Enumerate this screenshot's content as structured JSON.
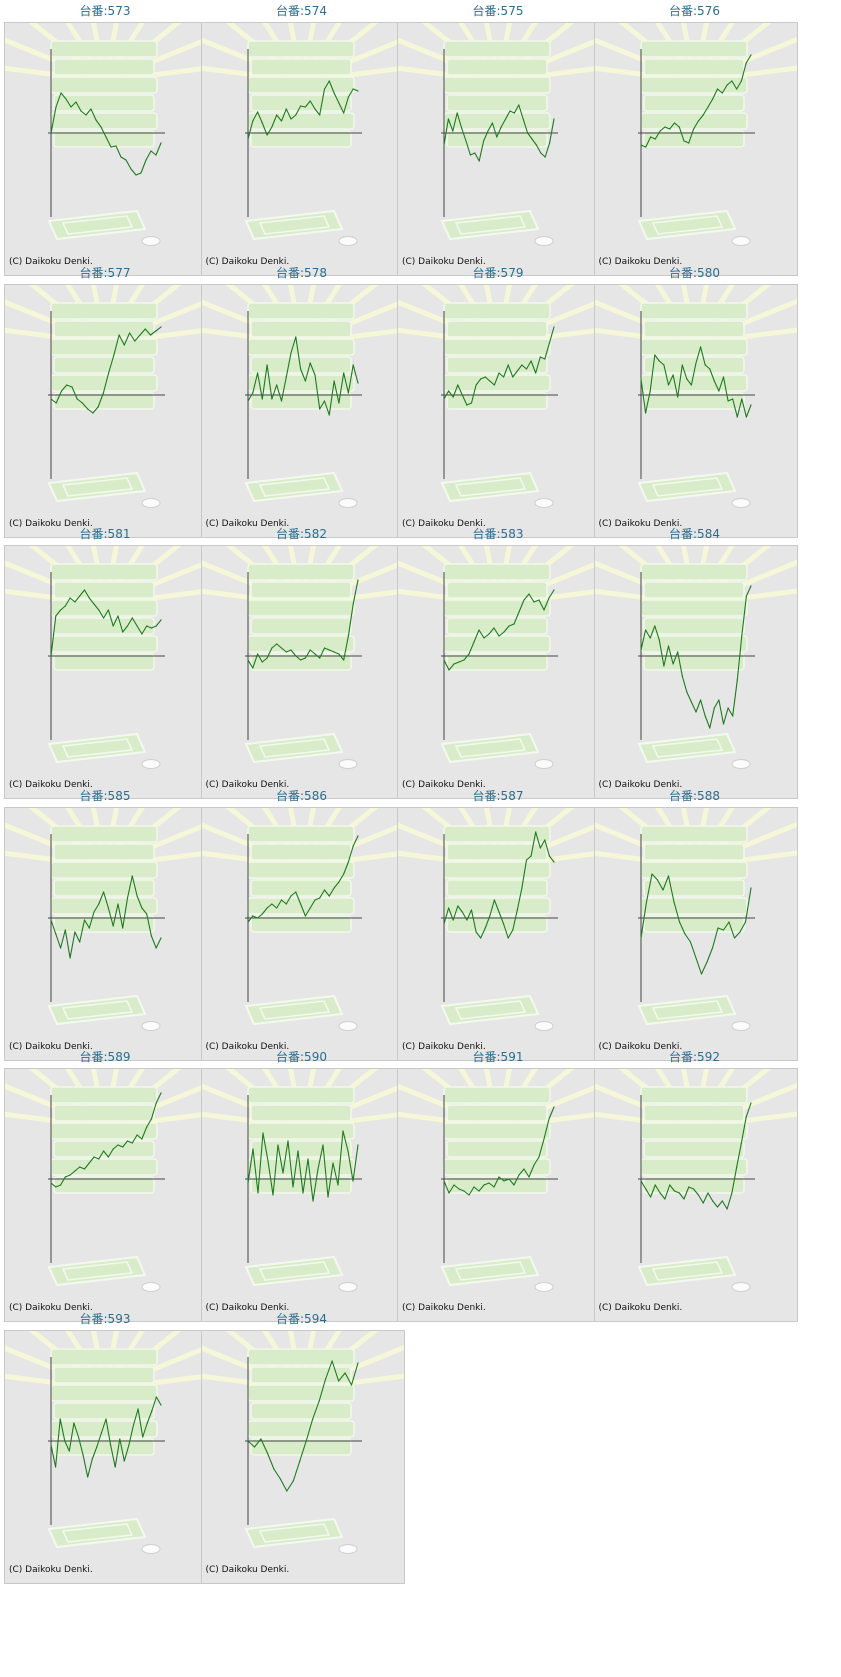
{
  "title_prefix": "台番:",
  "credit": "(C) Daikoku Denki.",
  "colors": {
    "title": "#2d6e8e",
    "panel": "#e6e6e6",
    "line": "#1f7a1f",
    "axis": "#444444",
    "art": "#d9ecc9"
  },
  "chart_data": [
    {
      "type": "line",
      "title": "台番:573",
      "values": [
        0,
        26,
        40,
        34,
        26,
        31,
        22,
        18,
        24,
        13,
        6,
        -4,
        -14,
        -13,
        -24,
        -27,
        -36,
        -42,
        -40,
        -27,
        -18,
        -22,
        -10
      ]
    },
    {
      "type": "line",
      "title": "台番:574",
      "values": [
        -6,
        12,
        21,
        10,
        -2,
        6,
        18,
        12,
        24,
        14,
        18,
        27,
        26,
        32,
        24,
        18,
        44,
        52,
        40,
        30,
        20,
        36,
        44,
        42
      ]
    },
    {
      "type": "line",
      "title": "台番:575",
      "values": [
        -12,
        14,
        2,
        20,
        5,
        -8,
        -22,
        -20,
        -28,
        -8,
        2,
        10,
        -4,
        6,
        14,
        22,
        20,
        28,
        14,
        0,
        -6,
        -12,
        -20,
        -24,
        -10,
        14
      ]
    },
    {
      "type": "line",
      "title": "台番:576",
      "values": [
        -12,
        -14,
        -4,
        -6,
        2,
        6,
        4,
        10,
        6,
        -8,
        -10,
        4,
        12,
        18,
        26,
        34,
        44,
        40,
        48,
        52,
        44,
        52,
        70,
        78
      ]
    },
    {
      "type": "line",
      "title": "台番:577",
      "values": [
        -4,
        -8,
        4,
        10,
        8,
        -4,
        -8,
        -14,
        -18,
        -12,
        2,
        22,
        40,
        60,
        50,
        62,
        54,
        60,
        66,
        60,
        64,
        68
      ]
    },
    {
      "type": "line",
      "title": "台番:578",
      "values": [
        -6,
        2,
        22,
        -4,
        30,
        -4,
        10,
        -6,
        18,
        42,
        58,
        26,
        14,
        32,
        20,
        -14,
        -6,
        -20,
        14,
        -8,
        22,
        2,
        30,
        12
      ]
    },
    {
      "type": "line",
      "title": "台番:579",
      "values": [
        -4,
        4,
        -2,
        10,
        0,
        -10,
        -8,
        10,
        16,
        18,
        14,
        10,
        22,
        18,
        30,
        18,
        24,
        30,
        26,
        34,
        22,
        38,
        36,
        52,
        68
      ]
    },
    {
      "type": "line",
      "title": "台番:580",
      "values": [
        16,
        -18,
        4,
        40,
        34,
        30,
        10,
        20,
        -2,
        30,
        16,
        10,
        32,
        48,
        30,
        26,
        14,
        4,
        18,
        -6,
        -4,
        -22,
        -4,
        -22,
        -10
      ]
    },
    {
      "type": "line",
      "title": "台番:581",
      "values": [
        0,
        40,
        46,
        50,
        58,
        54,
        60,
        66,
        58,
        52,
        46,
        38,
        46,
        30,
        40,
        24,
        30,
        38,
        30,
        22,
        30,
        28,
        30,
        36
      ]
    },
    {
      "type": "line",
      "title": "台番:582",
      "values": [
        -4,
        -12,
        2,
        -6,
        -2,
        8,
        12,
        8,
        4,
        6,
        0,
        -4,
        -2,
        6,
        2,
        -2,
        8,
        6,
        4,
        2,
        -4,
        20,
        52,
        76
      ]
    },
    {
      "type": "line",
      "title": "台番:583",
      "values": [
        -4,
        -14,
        -8,
        -6,
        -4,
        2,
        14,
        26,
        18,
        22,
        28,
        20,
        24,
        30,
        32,
        44,
        56,
        62,
        54,
        56,
        46,
        58,
        66
      ]
    },
    {
      "type": "line",
      "title": "台番:584",
      "values": [
        6,
        26,
        18,
        30,
        16,
        -10,
        10,
        -8,
        4,
        -20,
        -36,
        -46,
        -56,
        -44,
        -60,
        -72,
        -52,
        -44,
        -68,
        -52,
        -60,
        -24,
        20,
        60,
        70
      ]
    },
    {
      "type": "line",
      "title": "台番:585",
      "values": [
        -2,
        -16,
        -30,
        -12,
        -40,
        -14,
        -24,
        -2,
        -10,
        6,
        14,
        26,
        10,
        -8,
        14,
        -10,
        20,
        42,
        22,
        10,
        4,
        -18,
        -30,
        -20
      ]
    },
    {
      "type": "line",
      "title": "台番:586",
      "values": [
        -4,
        2,
        0,
        4,
        10,
        14,
        10,
        18,
        14,
        22,
        26,
        14,
        2,
        10,
        18,
        20,
        28,
        22,
        30,
        36,
        44,
        56,
        72,
        82
      ]
    },
    {
      "type": "line",
      "title": "台番:587",
      "values": [
        -6,
        10,
        -2,
        12,
        6,
        -2,
        8,
        -14,
        -20,
        -10,
        2,
        18,
        6,
        -6,
        -20,
        -12,
        8,
        30,
        58,
        62,
        86,
        70,
        78,
        62,
        56
      ]
    },
    {
      "type": "line",
      "title": "台番:588",
      "values": [
        -20,
        16,
        44,
        38,
        28,
        42,
        16,
        -4,
        -16,
        -24,
        -40,
        -56,
        -44,
        -30,
        -10,
        -12,
        -4,
        -20,
        -14,
        -4,
        30
      ]
    },
    {
      "type": "line",
      "title": "台番:589",
      "values": [
        -4,
        -8,
        -6,
        2,
        4,
        8,
        12,
        10,
        16,
        22,
        20,
        28,
        22,
        30,
        34,
        32,
        38,
        36,
        44,
        40,
        52,
        60,
        76,
        86
      ]
    },
    {
      "type": "line",
      "title": "台番:590",
      "values": [
        -4,
        30,
        -14,
        46,
        18,
        -16,
        34,
        6,
        38,
        -8,
        28,
        -14,
        20,
        -22,
        10,
        34,
        -18,
        16,
        -6,
        48,
        28,
        -2,
        34
      ]
    },
    {
      "type": "line",
      "title": "台番:591",
      "values": [
        -2,
        -14,
        -6,
        -10,
        -12,
        -16,
        -8,
        -12,
        -6,
        -4,
        -8,
        2,
        -2,
        0,
        -6,
        4,
        10,
        2,
        14,
        22,
        40,
        60,
        72
      ]
    },
    {
      "type": "line",
      "title": "台番:592",
      "values": [
        -2,
        -10,
        -18,
        -6,
        -14,
        -20,
        -6,
        -12,
        -14,
        -20,
        -8,
        -10,
        -16,
        -24,
        -14,
        -22,
        -28,
        -22,
        -30,
        -14,
        12,
        36,
        62,
        76
      ]
    },
    {
      "type": "line",
      "title": "台番:593",
      "values": [
        -4,
        -26,
        22,
        0,
        -10,
        18,
        4,
        -14,
        -36,
        -18,
        -6,
        8,
        22,
        -4,
        -26,
        2,
        -20,
        -4,
        16,
        32,
        4,
        18,
        30,
        44,
        36
      ]
    },
    {
      "type": "line",
      "title": "台番:594",
      "values": [
        0,
        -6,
        2,
        -12,
        -28,
        -38,
        -50,
        -40,
        -20,
        0,
        22,
        40,
        62,
        80,
        60,
        68,
        56,
        78
      ]
    }
  ]
}
